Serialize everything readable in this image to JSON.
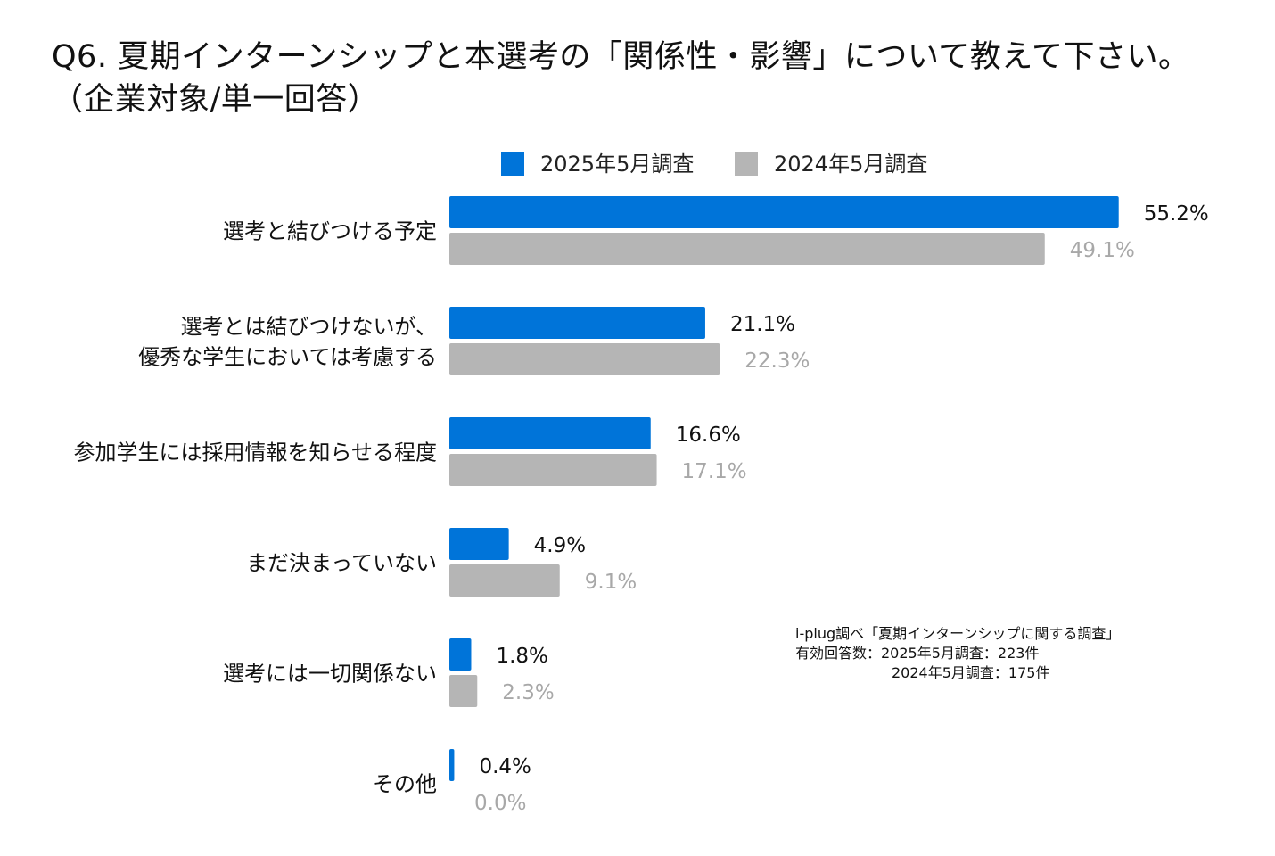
{
  "title": {
    "line1": "Q6. 夏期インターンシップと本選考の「関係性・影響」について教えて下さい。",
    "line2": "（企業対象/単一回答）"
  },
  "colors": {
    "series_2025": "#0074d9",
    "series_2024": "#b5b5b5",
    "label_2024": "#a8a8a8",
    "label_2025": "#111111"
  },
  "chart_data": {
    "type": "bar",
    "orientation": "horizontal",
    "categories": [
      [
        "選考と結びつける予定"
      ],
      [
        "選考とは結びつけないが、",
        "優秀な学生においては考慮する"
      ],
      [
        "参加学生には採用情報を知らせる程度"
      ],
      [
        "まだ決まっていない"
      ],
      [
        "選考には一切関係ない"
      ],
      [
        "その他"
      ]
    ],
    "series": [
      {
        "name": "2025年5月調査",
        "values": [
          55.2,
          21.1,
          16.6,
          4.9,
          1.8,
          0.4
        ],
        "labels": [
          "55.2%",
          "21.1%",
          "16.6%",
          "4.9%",
          "1.8%",
          "0.4%"
        ]
      },
      {
        "name": "2024年5月調査",
        "values": [
          49.1,
          22.3,
          17.1,
          9.1,
          2.3,
          0.0
        ],
        "labels": [
          "49.1%",
          "22.3%",
          "17.1%",
          "9.1%",
          "2.3%",
          "0.0%"
        ]
      }
    ],
    "xlim": [
      0,
      100
    ],
    "grid": false,
    "legend": "top"
  },
  "note": {
    "line1": "i-plug調べ「夏期インターンシップに関する調査」",
    "line2": "有効回答数：2025年5月調査：223件",
    "line3": "2024年5月調査：175件"
  }
}
